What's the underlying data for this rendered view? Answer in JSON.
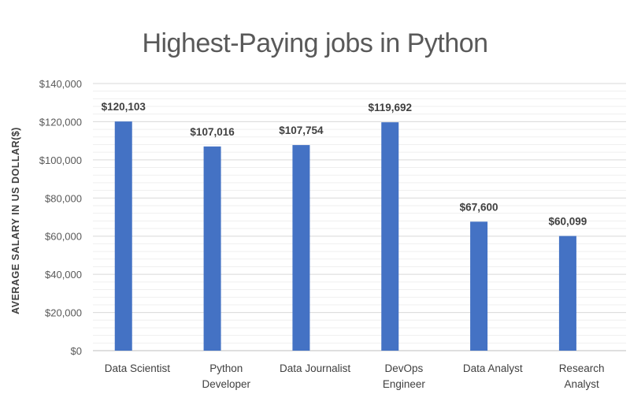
{
  "chart_data": {
    "type": "bar",
    "title": "Highest-Paying jobs in Python",
    "xlabel": "",
    "ylabel": "AVERAGE SALARY IN US DOLLAR($)",
    "categories": [
      "Data Scientist",
      "Python Developer",
      "Data Journalist",
      "DevOps Engineer",
      "Data Analyst",
      "Research Analyst"
    ],
    "category_lines": [
      [
        "Data Scientist"
      ],
      [
        "Python",
        "Developer"
      ],
      [
        "Data Journalist"
      ],
      [
        "DevOps",
        "Engineer"
      ],
      [
        "Data Analyst"
      ],
      [
        "Research",
        "Analyst"
      ]
    ],
    "values": [
      120103,
      107016,
      107754,
      119692,
      67600,
      60099
    ],
    "data_labels": [
      "$120,103",
      "$107,016",
      "$107,754",
      "$119,692",
      "$67,600",
      "$60,099"
    ],
    "ylim": [
      0,
      140000
    ],
    "yticks": [
      0,
      20000,
      40000,
      60000,
      80000,
      100000,
      120000,
      140000
    ],
    "ytick_labels": [
      "$0",
      "$20,000",
      "$40,000",
      "$60,000",
      "$80,000",
      "$100,000",
      "$120,000",
      "$140,000"
    ],
    "grid": true,
    "bar_color": "#4472C4"
  }
}
